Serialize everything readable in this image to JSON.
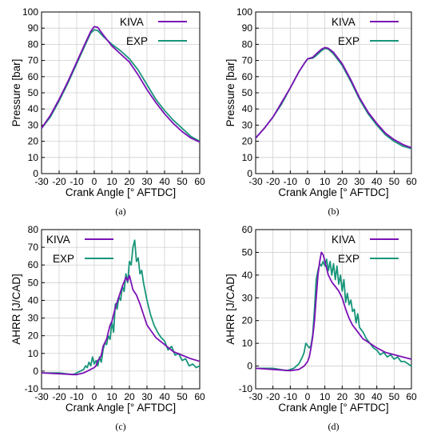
{
  "colors": {
    "kiva": "#7b12b5",
    "exp": "#18957a",
    "grid": "#cfcfcf"
  },
  "chart_data": [
    {
      "panel": "a",
      "panel_label": "(a)",
      "type": "line",
      "xlabel": "Crank Angle [° AFTDC]",
      "ylabel": "Pressure  [bar]",
      "xlim": [
        -30,
        60
      ],
      "ylim": [
        0,
        100
      ],
      "xticks": [
        -30,
        -20,
        -10,
        0,
        10,
        20,
        30,
        40,
        50,
        60
      ],
      "yticks": [
        0,
        10,
        20,
        30,
        40,
        50,
        60,
        70,
        80,
        90,
        100
      ],
      "xtick_labels": [
        "-30",
        "-20",
        "-10",
        "0",
        "10",
        "20",
        "30",
        "40",
        "50",
        "60"
      ],
      "ytick_labels": [
        "0",
        "10",
        "20",
        "30",
        "40",
        "50",
        "60",
        "70",
        "80",
        "90",
        "100"
      ],
      "grid": true,
      "legend_position": "top-right",
      "series": [
        {
          "name": "KIVA",
          "x": [
            -30,
            -25,
            -20,
            -15,
            -10,
            -5,
            -2,
            0,
            2,
            5,
            10,
            15,
            20,
            25,
            30,
            35,
            40,
            45,
            50,
            55,
            60
          ],
          "y": [
            28,
            36,
            46,
            57,
            69,
            81,
            88,
            91,
            90.5,
            86,
            79,
            74,
            69,
            61,
            52,
            44,
            37,
            31,
            26,
            22,
            19.5
          ]
        },
        {
          "name": "EXP",
          "x": [
            -30,
            -25,
            -20,
            -15,
            -10,
            -5,
            -2,
            0,
            2,
            5,
            10,
            15,
            20,
            25,
            30,
            35,
            40,
            45,
            50,
            55,
            60
          ],
          "y": [
            28,
            35,
            45,
            56,
            68,
            80,
            87,
            89,
            88.5,
            85,
            80,
            76,
            71,
            64,
            55,
            46,
            39,
            33,
            28,
            23,
            20
          ]
        }
      ]
    },
    {
      "panel": "b",
      "panel_label": "(b)",
      "type": "line",
      "xlabel": "Crank Angle [° AFTDC]",
      "ylabel": "Pressure  [bar]",
      "xlim": [
        -30,
        60
      ],
      "ylim": [
        0,
        100
      ],
      "xticks": [
        -30,
        -20,
        -10,
        0,
        10,
        20,
        30,
        40,
        50,
        60
      ],
      "yticks": [
        0,
        10,
        20,
        30,
        40,
        50,
        60,
        70,
        80,
        90,
        100
      ],
      "xtick_labels": [
        "-30",
        "-20",
        "-10",
        "0",
        "10",
        "20",
        "30",
        "40",
        "50",
        "60"
      ],
      "ytick_labels": [
        "0",
        "10",
        "20",
        "30",
        "40",
        "50",
        "60",
        "70",
        "80",
        "90",
        "100"
      ],
      "grid": true,
      "legend_position": "top-right",
      "series": [
        {
          "name": "KIVA",
          "x": [
            -30,
            -25,
            -20,
            -15,
            -10,
            -5,
            -2,
            0,
            3,
            5,
            8,
            10,
            12,
            15,
            20,
            25,
            30,
            35,
            40,
            45,
            50,
            55,
            60
          ],
          "y": [
            22,
            28,
            35,
            44,
            53,
            63,
            68,
            71,
            72,
            74,
            77,
            78,
            77.5,
            75,
            68,
            58,
            47,
            38,
            31,
            25,
            21,
            18,
            16
          ]
        },
        {
          "name": "EXP",
          "x": [
            -30,
            -25,
            -20,
            -15,
            -10,
            -5,
            -2,
            0,
            3,
            5,
            8,
            10,
            12,
            15,
            20,
            25,
            30,
            35,
            40,
            45,
            50,
            55,
            60
          ],
          "y": [
            22,
            28,
            35,
            43,
            53,
            63,
            68,
            71,
            71.5,
            73,
            76,
            77.5,
            77,
            74,
            67,
            57,
            46,
            37,
            30,
            24,
            20,
            17,
            15.5
          ]
        }
      ]
    },
    {
      "panel": "c",
      "panel_label": "(c)",
      "type": "line",
      "xlabel": "Crank Angle [° AFTDC]",
      "ylabel": "AHRR  [J/CAD]",
      "xlim": [
        -30,
        60
      ],
      "ylim": [
        -10,
        80
      ],
      "xticks": [
        -30,
        -20,
        -10,
        0,
        10,
        20,
        30,
        40,
        50,
        60
      ],
      "yticks": [
        -10,
        0,
        10,
        20,
        30,
        40,
        50,
        60,
        70,
        80
      ],
      "xtick_labels": [
        "-30",
        "-20",
        "-10",
        "0",
        "10",
        "20",
        "30",
        "40",
        "50",
        "60"
      ],
      "ytick_labels": [
        "-10",
        "0",
        "10",
        "20",
        "30",
        "40",
        "50",
        "60",
        "70",
        "80"
      ],
      "grid": true,
      "legend_position": "top-left",
      "series": [
        {
          "name": "KIVA",
          "x": [
            -30,
            -20,
            -10,
            -6,
            -4,
            -2,
            0,
            1,
            2,
            3,
            4,
            5,
            7,
            8,
            9,
            10,
            12,
            14,
            16,
            18,
            19,
            20,
            21,
            22,
            24,
            26,
            28,
            30,
            35,
            40,
            45,
            50,
            55,
            60
          ],
          "y": [
            -1,
            -1.5,
            -2,
            -1,
            0,
            1,
            2,
            3,
            6,
            7,
            9,
            14,
            18,
            22,
            26,
            28,
            36,
            42,
            48,
            53,
            51,
            54,
            50,
            46,
            43,
            38,
            32,
            26,
            19,
            15,
            11,
            9,
            7,
            5.5
          ]
        },
        {
          "name": "EXP",
          "x": [
            -30,
            -20,
            -12,
            -8,
            -6,
            -5,
            -4,
            -3,
            -2,
            -1,
            0,
            1,
            2,
            3,
            4,
            5,
            6,
            7,
            8,
            9,
            10,
            11,
            12,
            13,
            14,
            15,
            16,
            17,
            18,
            19,
            20,
            21,
            22,
            23,
            24,
            25,
            26,
            27,
            28,
            29,
            30,
            32,
            34,
            36,
            38,
            40,
            42,
            44,
            46,
            48,
            50,
            52,
            54,
            56,
            58,
            60
          ],
          "y": [
            -1,
            -1,
            -2,
            0,
            1,
            3,
            2,
            5,
            3,
            8,
            4,
            6,
            3,
            8,
            5,
            12,
            16,
            15,
            20,
            18,
            28,
            22,
            38,
            35,
            42,
            40,
            48,
            45,
            55,
            50,
            62,
            60,
            70,
            74,
            62,
            64,
            55,
            57,
            50,
            45,
            40,
            32,
            26,
            22,
            19,
            17,
            12,
            14,
            9,
            10,
            6,
            7,
            3,
            4,
            2,
            3
          ]
        }
      ]
    },
    {
      "panel": "d",
      "panel_label": "(d)",
      "type": "line",
      "xlabel": "Crank Angle [° AFTDC]",
      "ylabel": "AHRR  [J/CAD]",
      "xlim": [
        -30,
        60
      ],
      "ylim": [
        -10,
        60
      ],
      "xticks": [
        -30,
        -20,
        -10,
        0,
        10,
        20,
        30,
        40,
        50,
        60
      ],
      "yticks": [
        -10,
        0,
        10,
        20,
        30,
        40,
        50,
        60
      ],
      "xtick_labels": [
        "-30",
        "-20",
        "-10",
        "0",
        "10",
        "20",
        "30",
        "40",
        "50",
        "60"
      ],
      "ytick_labels": [
        "-10",
        "0",
        "10",
        "20",
        "30",
        "40",
        "50",
        "60"
      ],
      "grid": true,
      "legend_position": "top-right",
      "series": [
        {
          "name": "KIVA",
          "x": [
            -30,
            -20,
            -10,
            -5,
            -2,
            0,
            1,
            2,
            3,
            4,
            5,
            6,
            7,
            8,
            9,
            10,
            11,
            12,
            14,
            16,
            18,
            20,
            22,
            24,
            26,
            28,
            30,
            32,
            34,
            36,
            38,
            40,
            45,
            50,
            55,
            60
          ],
          "y": [
            -1,
            -1.5,
            -2,
            -1.5,
            0,
            2,
            4,
            8,
            13,
            20,
            30,
            40,
            46,
            50,
            49,
            46,
            43,
            40,
            37,
            35,
            33,
            30,
            25,
            21,
            18,
            16,
            14,
            12,
            11,
            10,
            9,
            8,
            6,
            5,
            4,
            3
          ]
        },
        {
          "name": "EXP",
          "x": [
            -30,
            -20,
            -12,
            -8,
            -5,
            -3,
            -2,
            -1,
            0,
            1,
            2,
            3,
            4,
            5,
            6,
            7,
            8,
            9,
            10,
            11,
            12,
            13,
            14,
            15,
            16,
            17,
            18,
            19,
            20,
            21,
            22,
            23,
            24,
            25,
            26,
            27,
            28,
            29,
            30,
            32,
            34,
            36,
            38,
            40,
            42,
            44,
            46,
            48,
            50,
            52,
            54,
            56,
            58,
            60
          ],
          "y": [
            -1,
            -1,
            -2,
            -1,
            1,
            4,
            6,
            10,
            9,
            8,
            9,
            14,
            25,
            38,
            42,
            45,
            44,
            46,
            44,
            47,
            42,
            46,
            40,
            45,
            38,
            44,
            36,
            40,
            33,
            38,
            28,
            32,
            27,
            29,
            24,
            25,
            19,
            23,
            17,
            15,
            12,
            10,
            8,
            7,
            5,
            6,
            4,
            5,
            3,
            4,
            2,
            2,
            1,
            0
          ]
        }
      ]
    }
  ]
}
